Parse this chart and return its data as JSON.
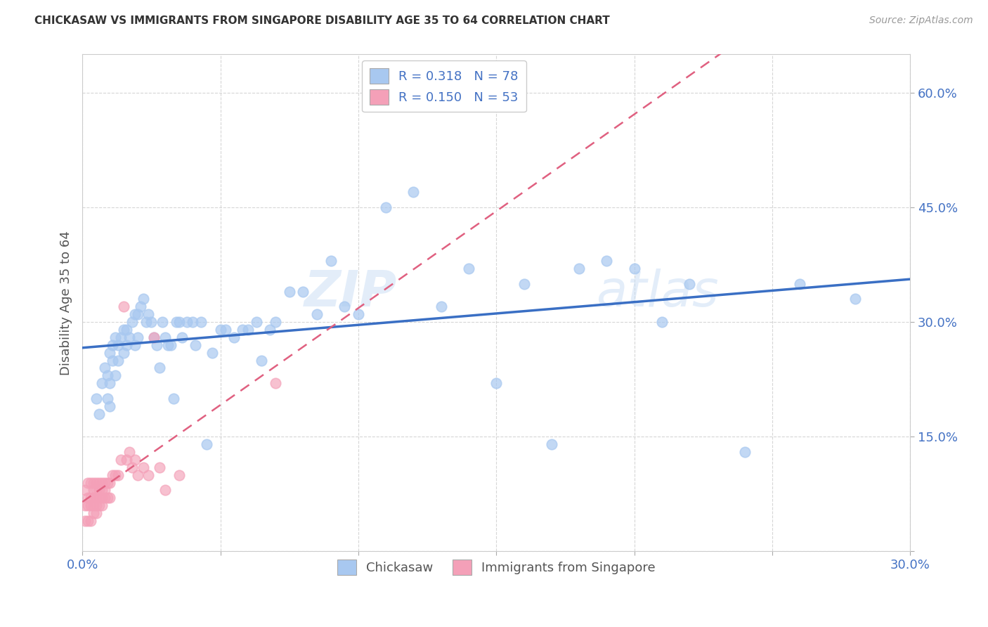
{
  "title": "CHICKASAW VS IMMIGRANTS FROM SINGAPORE DISABILITY AGE 35 TO 64 CORRELATION CHART",
  "source": "Source: ZipAtlas.com",
  "ylabel_label": "Disability Age 35 to 64",
  "x_min": 0.0,
  "x_max": 0.3,
  "y_min": 0.0,
  "y_max": 0.65,
  "x_ticks": [
    0.0,
    0.05,
    0.1,
    0.15,
    0.2,
    0.25,
    0.3
  ],
  "x_tick_labels": [
    "0.0%",
    "",
    "",
    "",
    "",
    "",
    "30.0%"
  ],
  "y_ticks": [
    0.0,
    0.15,
    0.3,
    0.45,
    0.6
  ],
  "y_tick_labels": [
    "",
    "15.0%",
    "30.0%",
    "45.0%",
    "60.0%"
  ],
  "grid_color": "#cccccc",
  "background_color": "#ffffff",
  "chickasaw_color": "#a8c8f0",
  "singapore_color": "#f4a0b8",
  "chickasaw_line_color": "#3a6fc4",
  "singapore_line_color": "#e06080",
  "legend_r1": "R = 0.318",
  "legend_n1": "N = 78",
  "legend_r2": "R = 0.150",
  "legend_n2": "N = 53",
  "legend_label1": "Chickasaw",
  "legend_label2": "Immigrants from Singapore",
  "watermark_zip": "ZIP",
  "watermark_atlas": "atlas",
  "chickasaw_x": [
    0.005,
    0.006,
    0.007,
    0.008,
    0.009,
    0.009,
    0.01,
    0.01,
    0.01,
    0.011,
    0.011,
    0.012,
    0.012,
    0.013,
    0.013,
    0.014,
    0.015,
    0.015,
    0.016,
    0.016,
    0.017,
    0.018,
    0.019,
    0.019,
    0.02,
    0.02,
    0.021,
    0.022,
    0.023,
    0.024,
    0.025,
    0.026,
    0.027,
    0.028,
    0.029,
    0.03,
    0.031,
    0.032,
    0.033,
    0.034,
    0.035,
    0.036,
    0.038,
    0.04,
    0.041,
    0.043,
    0.045,
    0.047,
    0.05,
    0.052,
    0.055,
    0.058,
    0.06,
    0.063,
    0.065,
    0.068,
    0.07,
    0.075,
    0.08,
    0.085,
    0.09,
    0.095,
    0.1,
    0.11,
    0.12,
    0.13,
    0.14,
    0.15,
    0.16,
    0.17,
    0.18,
    0.19,
    0.2,
    0.21,
    0.22,
    0.24,
    0.26,
    0.28
  ],
  "chickasaw_y": [
    0.2,
    0.18,
    0.22,
    0.24,
    0.23,
    0.2,
    0.26,
    0.22,
    0.19,
    0.27,
    0.25,
    0.28,
    0.23,
    0.27,
    0.25,
    0.28,
    0.29,
    0.26,
    0.29,
    0.27,
    0.28,
    0.3,
    0.31,
    0.27,
    0.31,
    0.28,
    0.32,
    0.33,
    0.3,
    0.31,
    0.3,
    0.28,
    0.27,
    0.24,
    0.3,
    0.28,
    0.27,
    0.27,
    0.2,
    0.3,
    0.3,
    0.28,
    0.3,
    0.3,
    0.27,
    0.3,
    0.14,
    0.26,
    0.29,
    0.29,
    0.28,
    0.29,
    0.29,
    0.3,
    0.25,
    0.29,
    0.3,
    0.34,
    0.34,
    0.31,
    0.38,
    0.32,
    0.31,
    0.45,
    0.47,
    0.32,
    0.37,
    0.22,
    0.35,
    0.14,
    0.37,
    0.38,
    0.37,
    0.3,
    0.35,
    0.13,
    0.35,
    0.33
  ],
  "singapore_x": [
    0.001,
    0.001,
    0.001,
    0.002,
    0.002,
    0.002,
    0.002,
    0.003,
    0.003,
    0.003,
    0.003,
    0.004,
    0.004,
    0.004,
    0.004,
    0.004,
    0.005,
    0.005,
    0.005,
    0.005,
    0.005,
    0.006,
    0.006,
    0.006,
    0.006,
    0.007,
    0.007,
    0.007,
    0.007,
    0.008,
    0.008,
    0.008,
    0.009,
    0.009,
    0.01,
    0.01,
    0.011,
    0.012,
    0.013,
    0.014,
    0.015,
    0.016,
    0.017,
    0.018,
    0.019,
    0.02,
    0.022,
    0.024,
    0.026,
    0.028,
    0.03,
    0.035,
    0.07
  ],
  "singapore_y": [
    0.04,
    0.06,
    0.08,
    0.04,
    0.06,
    0.07,
    0.09,
    0.04,
    0.06,
    0.07,
    0.09,
    0.05,
    0.06,
    0.07,
    0.08,
    0.09,
    0.05,
    0.06,
    0.07,
    0.08,
    0.09,
    0.06,
    0.07,
    0.08,
    0.09,
    0.06,
    0.07,
    0.08,
    0.09,
    0.07,
    0.08,
    0.09,
    0.07,
    0.09,
    0.07,
    0.09,
    0.1,
    0.1,
    0.1,
    0.12,
    0.32,
    0.12,
    0.13,
    0.11,
    0.12,
    0.1,
    0.11,
    0.1,
    0.28,
    0.11,
    0.08,
    0.1,
    0.22
  ]
}
